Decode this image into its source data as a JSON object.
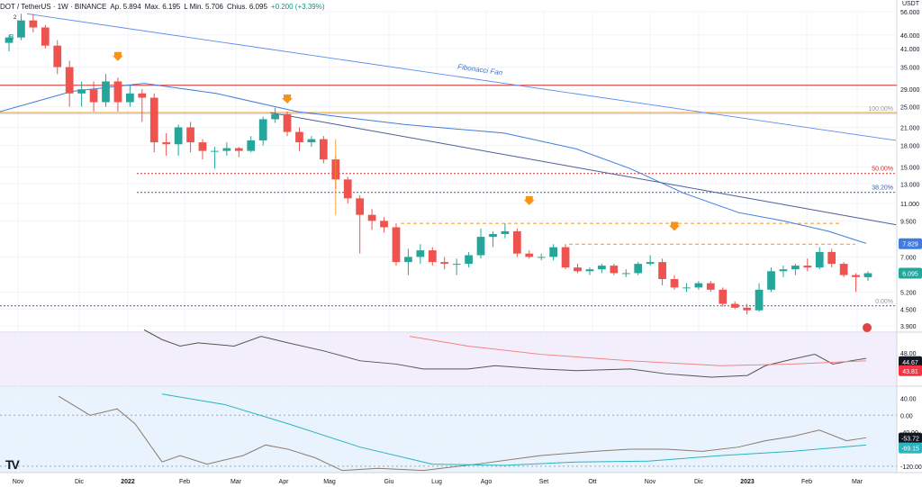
{
  "header": {
    "symbol": "DOT / TetherUS · 1W · BINANCE",
    "open": "Ap. 5.894",
    "high": "Max. 6.195",
    "low": "L Min. 5.706",
    "close": "Chius. 6.095",
    "change": "+0.200 (+3.39%)",
    "currency": "USDT"
  },
  "colors": {
    "up": "#26a69a",
    "down": "#ef5350",
    "orange": "#f7931a",
    "blue_line": "#5b8def",
    "ma_blue": "#3f7be0",
    "red_hline": "#d32f2f",
    "orange_hline": "#f0a030",
    "rsi_line": "#555555",
    "rsi_ma": "#f28080",
    "osc_line": "#8a7a6a",
    "osc_signal": "#2bb3c0",
    "last_price_bg": "#26a69a",
    "ma_box_bg": "#3f7be0"
  },
  "markers": {
    "b_label": "B",
    "b_count": "2"
  },
  "annotations": {
    "fib_fan": "Fibonacci Fan",
    "fib_100": "100.00%",
    "fib_50": "50.00%",
    "fib_38": "38.20%",
    "fib_0": "0.00%"
  },
  "price_boxes": {
    "ma": "7.829",
    "last": "6.095",
    "rsi": "44.67",
    "rsi_ma": "43.81",
    "osc": "-53.72",
    "osc_signal": "-69.15"
  },
  "chart_data": {
    "type": "candlestick",
    "title": "DOT / TetherUS · 1W · BINANCE",
    "y_axis_ticks": [
      "56.000",
      "46.000",
      "41.000",
      "35.000",
      "29.000",
      "25.000",
      "21.000",
      "18.000",
      "15.000",
      "13.000",
      "11.000",
      "9.500",
      "7.000",
      "5.200",
      "4.500",
      "3.900"
    ],
    "x_axis_ticks": [
      "Nov",
      "Dic",
      "2022",
      "Feb",
      "Mar",
      "Apr",
      "Mag",
      "Giu",
      "Lug",
      "Ago",
      "Set",
      "Ott",
      "Nov",
      "Dic",
      "2023",
      "Feb",
      "Mar"
    ],
    "rsi_ticks": [
      "48.00"
    ],
    "osc_ticks": [
      "40.00",
      "0.00",
      "-40.00",
      "-120.00"
    ],
    "candles": [
      {
        "o": 43,
        "h": 46,
        "l": 40,
        "c": 45
      },
      {
        "o": 45,
        "h": 55,
        "l": 44,
        "c": 52
      },
      {
        "o": 52,
        "h": 55,
        "l": 47,
        "c": 49
      },
      {
        "o": 49,
        "h": 50,
        "l": 41,
        "c": 42
      },
      {
        "o": 42,
        "h": 44,
        "l": 33,
        "c": 35
      },
      {
        "o": 35,
        "h": 37,
        "l": 25,
        "c": 28
      },
      {
        "o": 28,
        "h": 31,
        "l": 25,
        "c": 29
      },
      {
        "o": 29,
        "h": 31,
        "l": 24,
        "c": 26
      },
      {
        "o": 26,
        "h": 33,
        "l": 25,
        "c": 31
      },
      {
        "o": 31,
        "h": 32,
        "l": 24,
        "c": 26
      },
      {
        "o": 26,
        "h": 30,
        "l": 25,
        "c": 28
      },
      {
        "o": 28,
        "h": 29,
        "l": 22,
        "c": 27
      },
      {
        "o": 27,
        "h": 28,
        "l": 17,
        "c": 18.5
      },
      {
        "o": 18.5,
        "h": 20,
        "l": 16.5,
        "c": 18.2
      },
      {
        "o": 18.2,
        "h": 21.5,
        "l": 16.5,
        "c": 21
      },
      {
        "o": 21,
        "h": 22,
        "l": 17,
        "c": 18.5
      },
      {
        "o": 18.5,
        "h": 19,
        "l": 16,
        "c": 17.2
      },
      {
        "o": 17.2,
        "h": 17.8,
        "l": 14.8,
        "c": 17.2
      },
      {
        "o": 17.2,
        "h": 18.5,
        "l": 16.5,
        "c": 17.6
      },
      {
        "o": 17.6,
        "h": 17.8,
        "l": 16.3,
        "c": 17.2
      },
      {
        "o": 17.2,
        "h": 19.5,
        "l": 17,
        "c": 18.8
      },
      {
        "o": 18.8,
        "h": 23,
        "l": 18,
        "c": 22.5
      },
      {
        "o": 22.5,
        "h": 24.8,
        "l": 21.8,
        "c": 23.5
      },
      {
        "o": 23.5,
        "h": 24,
        "l": 19.5,
        "c": 20.2
      },
      {
        "o": 20.2,
        "h": 21,
        "l": 17.2,
        "c": 18.5
      },
      {
        "o": 18.5,
        "h": 19.5,
        "l": 17.8,
        "c": 19
      },
      {
        "o": 19,
        "h": 19.5,
        "l": 15.5,
        "c": 16
      },
      {
        "o": 16,
        "h": 16.5,
        "l": 12.5,
        "c": 13.5
      },
      {
        "o": 13.5,
        "h": 13.8,
        "l": 11,
        "c": 11.5
      },
      {
        "o": 11.5,
        "h": 11.8,
        "l": 7.2,
        "c": 10
      },
      {
        "o": 10,
        "h": 10.5,
        "l": 8.8,
        "c": 9.5
      },
      {
        "o": 9.5,
        "h": 9.8,
        "l": 8.6,
        "c": 9
      },
      {
        "o": 9,
        "h": 9.3,
        "l": 6.5,
        "c": 6.7
      },
      {
        "o": 6.7,
        "h": 7.5,
        "l": 6,
        "c": 7
      },
      {
        "o": 7,
        "h": 7.8,
        "l": 6.6,
        "c": 7.4
      },
      {
        "o": 7.4,
        "h": 7.6,
        "l": 6.5,
        "c": 6.7
      },
      {
        "o": 6.7,
        "h": 7,
        "l": 6.3,
        "c": 6.6
      },
      {
        "o": 6.6,
        "h": 6.9,
        "l": 6,
        "c": 6.6
      },
      {
        "o": 6.6,
        "h": 7.3,
        "l": 6.4,
        "c": 7.1
      },
      {
        "o": 7.1,
        "h": 8.9,
        "l": 6.9,
        "c": 8.3
      },
      {
        "o": 8.3,
        "h": 8.7,
        "l": 7.6,
        "c": 8.5
      },
      {
        "o": 8.5,
        "h": 9.3,
        "l": 8.2,
        "c": 8.7
      },
      {
        "o": 8.7,
        "h": 8.9,
        "l": 7,
        "c": 7.2
      },
      {
        "o": 7.2,
        "h": 7.4,
        "l": 6.9,
        "c": 7
      },
      {
        "o": 7,
        "h": 7.2,
        "l": 6.8,
        "c": 7
      },
      {
        "o": 7,
        "h": 7.8,
        "l": 6.8,
        "c": 7.6
      },
      {
        "o": 7.6,
        "h": 7.8,
        "l": 6.3,
        "c": 6.4
      },
      {
        "o": 6.4,
        "h": 6.6,
        "l": 6.1,
        "c": 6.2
      },
      {
        "o": 6.2,
        "h": 6.4,
        "l": 6,
        "c": 6.3
      },
      {
        "o": 6.3,
        "h": 6.6,
        "l": 6.1,
        "c": 6.5
      },
      {
        "o": 6.5,
        "h": 6.6,
        "l": 6,
        "c": 6.1
      },
      {
        "o": 6.1,
        "h": 6.3,
        "l": 5.9,
        "c": 6.1
      },
      {
        "o": 6.1,
        "h": 6.7,
        "l": 6,
        "c": 6.6
      },
      {
        "o": 6.6,
        "h": 7.1,
        "l": 6.5,
        "c": 6.7
      },
      {
        "o": 6.7,
        "h": 6.9,
        "l": 5.5,
        "c": 5.8
      },
      {
        "o": 5.8,
        "h": 6,
        "l": 5.3,
        "c": 5.4
      },
      {
        "o": 5.4,
        "h": 5.6,
        "l": 5.2,
        "c": 5.4
      },
      {
        "o": 5.4,
        "h": 5.7,
        "l": 5.3,
        "c": 5.6
      },
      {
        "o": 5.6,
        "h": 5.7,
        "l": 5.2,
        "c": 5.3
      },
      {
        "o": 5.3,
        "h": 5.4,
        "l": 4.6,
        "c": 4.7
      },
      {
        "o": 4.7,
        "h": 4.8,
        "l": 4.5,
        "c": 4.55
      },
      {
        "o": 4.55,
        "h": 4.7,
        "l": 4.3,
        "c": 4.45
      },
      {
        "o": 4.45,
        "h": 5.6,
        "l": 4.4,
        "c": 5.3
      },
      {
        "o": 5.3,
        "h": 6.4,
        "l": 5.2,
        "c": 6.2
      },
      {
        "o": 6.2,
        "h": 6.5,
        "l": 5.9,
        "c": 6.3
      },
      {
        "o": 6.3,
        "h": 6.6,
        "l": 6,
        "c": 6.5
      },
      {
        "o": 6.5,
        "h": 6.9,
        "l": 6.2,
        "c": 6.4
      },
      {
        "o": 6.4,
        "h": 7.6,
        "l": 6.3,
        "c": 7.3
      },
      {
        "o": 7.3,
        "h": 7.5,
        "l": 6.4,
        "c": 6.6
      },
      {
        "o": 6.6,
        "h": 6.7,
        "l": 5.9,
        "c": 6
      },
      {
        "o": 6,
        "h": 6.1,
        "l": 5.2,
        "c": 5.9
      },
      {
        "o": 5.894,
        "h": 6.195,
        "l": 5.706,
        "c": 6.095
      }
    ],
    "legend": "none",
    "grid": "on"
  }
}
